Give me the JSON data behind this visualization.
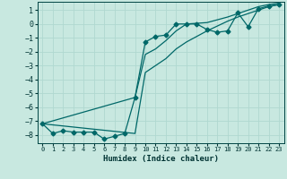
{
  "xlabel": "Humidex (Indice chaleur)",
  "background_color": "#c8e8e0",
  "grid_color": "#b0d8d0",
  "line_color": "#006868",
  "xlim": [
    -0.5,
    23.5
  ],
  "ylim": [
    -8.6,
    1.6
  ],
  "xticks": [
    0,
    1,
    2,
    3,
    4,
    5,
    6,
    7,
    8,
    9,
    10,
    11,
    12,
    13,
    14,
    15,
    16,
    17,
    18,
    19,
    20,
    21,
    22,
    23
  ],
  "yticks": [
    1,
    0,
    -1,
    -2,
    -3,
    -4,
    -5,
    -6,
    -7,
    -8
  ],
  "line1_x": [
    0,
    1,
    2,
    3,
    4,
    5,
    6,
    7,
    8,
    9,
    10,
    11,
    12,
    13,
    14,
    15,
    16,
    17,
    18,
    19,
    20,
    21,
    22,
    23
  ],
  "line1_y": [
    -7.2,
    -7.9,
    -7.7,
    -7.8,
    -7.8,
    -7.8,
    -8.3,
    -8.1,
    -7.9,
    -5.3,
    -1.3,
    -0.9,
    -0.8,
    0.0,
    0.0,
    0.0,
    -0.4,
    -0.6,
    -0.5,
    0.8,
    -0.2,
    1.1,
    1.3,
    1.4
  ],
  "line2_x": [
    0,
    9,
    10,
    11,
    12,
    13,
    14,
    15,
    16,
    17,
    18,
    19,
    20,
    21,
    22,
    23
  ],
  "line2_y": [
    -7.2,
    -7.9,
    -3.5,
    -3.0,
    -2.5,
    -1.8,
    -1.3,
    -0.9,
    -0.5,
    -0.15,
    0.2,
    0.5,
    0.75,
    1.0,
    1.25,
    1.4
  ],
  "line3_x": [
    0,
    9,
    10,
    11,
    12,
    13,
    14,
    15,
    16,
    17,
    18,
    19,
    20,
    21,
    22,
    23
  ],
  "line3_y": [
    -7.2,
    -5.3,
    -2.2,
    -1.8,
    -1.2,
    -0.5,
    0.0,
    0.05,
    0.1,
    0.3,
    0.5,
    0.75,
    1.0,
    1.25,
    1.4,
    1.5
  ]
}
